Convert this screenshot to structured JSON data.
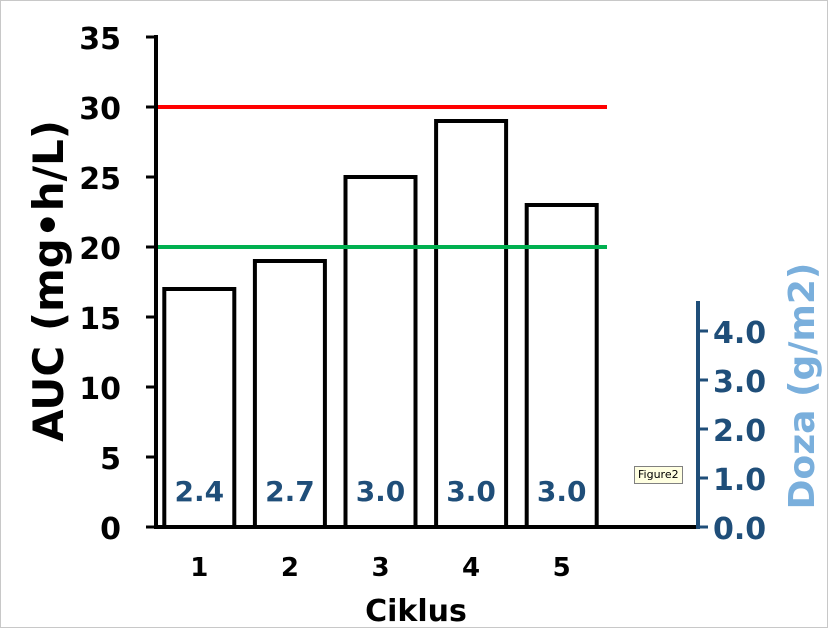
{
  "chart_data": {
    "type": "bar",
    "categories": [
      "1",
      "2",
      "3",
      "4",
      "5"
    ],
    "xlabel": "Ciklus",
    "ylabel": "AUC (mg•h/L)",
    "ylabel_secondary": "Doza (g/m2)",
    "ylim": [
      0,
      35
    ],
    "yticks": [
      "0",
      "5",
      "10",
      "15",
      "20",
      "25",
      "30",
      "35"
    ],
    "ylim_secondary": [
      0,
      4.5
    ],
    "yticks_secondary": [
      "0.0",
      "1.0",
      "2.0",
      "3.0",
      "4.0"
    ],
    "grid": false,
    "series": [
      {
        "values": [
          17,
          19,
          25,
          29,
          23
        ],
        "axis": "primary",
        "fill": "#ffffff",
        "stroke": "#000000"
      },
      {
        "values": [
          2.4,
          2.7,
          3.0,
          3.0,
          3.0
        ],
        "labels": [
          "2.4",
          "2.7",
          "3.0",
          "3.0",
          "3.0"
        ],
        "axis": "secondary",
        "fill": "#7aafdc"
      }
    ],
    "reference_lines": [
      {
        "value": 30,
        "color": "#ff0000"
      },
      {
        "value": 20,
        "color": "#00b050"
      }
    ],
    "colors": {
      "secondary_axis": "#1f4e79",
      "secondary_label": "#7aafdc",
      "primary_axis": "#000000"
    }
  },
  "tooltip": "Figure2"
}
